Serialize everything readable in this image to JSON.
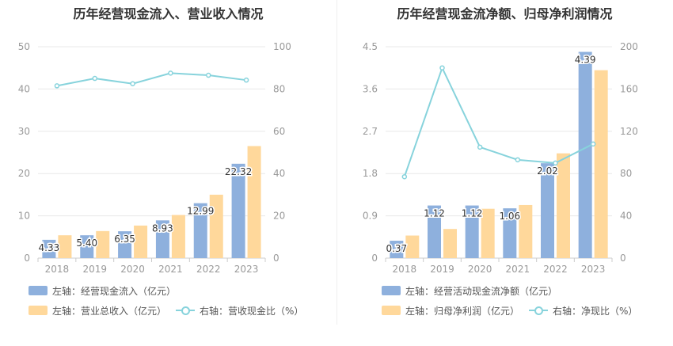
{
  "colors": {
    "bar_left": "#8eb0dd",
    "bar_right": "#ffd89b",
    "line": "#87d3dc",
    "grid": "#e8e8e8",
    "tick": "#999999"
  },
  "chart_data": [
    {
      "type": "bar",
      "title": "历年经营现金流入、营业收入情况",
      "categories": [
        "2018",
        "2019",
        "2020",
        "2021",
        "2022",
        "2023"
      ],
      "series": [
        {
          "name": "左轴：经营现金流入（亿元）",
          "axis": "left",
          "kind": "bar",
          "values": [
            4.33,
            5.4,
            6.35,
            8.93,
            12.99,
            22.32
          ],
          "labels": [
            "4.33",
            "5.40",
            "6.35",
            "8.93",
            "12.99",
            "22.32"
          ]
        },
        {
          "name": "左轴：营业总收入（亿元）",
          "axis": "left",
          "kind": "bar",
          "values": [
            5.4,
            6.4,
            7.7,
            10.2,
            15.0,
            26.5
          ]
        },
        {
          "name": "右轴：营收现金比（%）",
          "axis": "right",
          "kind": "line",
          "values": [
            81.5,
            85.0,
            82.5,
            87.5,
            86.5,
            84.2
          ]
        }
      ],
      "y_left": {
        "min": 0,
        "max": 50,
        "ticks": [
          "0",
          "10",
          "20",
          "30",
          "40",
          "50"
        ]
      },
      "y_right": {
        "min": 0,
        "max": 100,
        "ticks": [
          "0",
          "20",
          "40",
          "60",
          "80",
          "100"
        ]
      }
    },
    {
      "type": "bar",
      "title": "历年经营现金流净额、归母净利润情况",
      "categories": [
        "2018",
        "2019",
        "2020",
        "2021",
        "2022",
        "2023"
      ],
      "series": [
        {
          "name": "左轴：经营活动现金流净额（亿元）",
          "axis": "left",
          "kind": "bar",
          "values": [
            0.37,
            1.12,
            1.12,
            1.06,
            2.02,
            4.39
          ],
          "labels": [
            "0.37",
            "1.12",
            "1.12",
            "1.06",
            "2.02",
            "4.39"
          ]
        },
        {
          "name": "左轴：归母净利润（亿元）",
          "axis": "left",
          "kind": "bar",
          "values": [
            0.48,
            0.62,
            1.05,
            1.13,
            2.23,
            4.0
          ]
        },
        {
          "name": "右轴：净现比（%）",
          "axis": "right",
          "kind": "line",
          "values": [
            77,
            180,
            105,
            93,
            90,
            108
          ]
        }
      ],
      "y_left": {
        "min": 0,
        "max": 4.5,
        "ticks": [
          "0",
          "0.9",
          "1.8",
          "2.7",
          "3.6",
          "4.5"
        ]
      },
      "y_right": {
        "min": 0,
        "max": 200,
        "ticks": [
          "0",
          "40",
          "80",
          "120",
          "160",
          "200"
        ]
      }
    }
  ]
}
